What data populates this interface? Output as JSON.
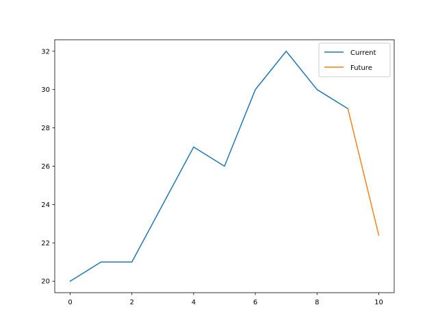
{
  "chart_data": {
    "type": "line",
    "title": "",
    "xlabel": "",
    "ylabel": "",
    "xlim": [
      -0.5,
      10.5
    ],
    "ylim": [
      19.4,
      32.6
    ],
    "xticks": [
      0,
      2,
      4,
      6,
      8,
      10
    ],
    "yticks": [
      20,
      22,
      24,
      26,
      28,
      30,
      32
    ],
    "grid": false,
    "legend_position": "top-right",
    "series": [
      {
        "name": "Current",
        "color": "#1f77b4",
        "x": [
          0,
          1,
          2,
          3,
          4,
          5,
          6,
          7,
          8,
          9
        ],
        "y": [
          20,
          21,
          21,
          24,
          27,
          26,
          30,
          32,
          30,
          29
        ]
      },
      {
        "name": "Future",
        "color": "#ff7f0e",
        "x": [
          9,
          10
        ],
        "y": [
          29,
          22.4
        ]
      }
    ]
  }
}
